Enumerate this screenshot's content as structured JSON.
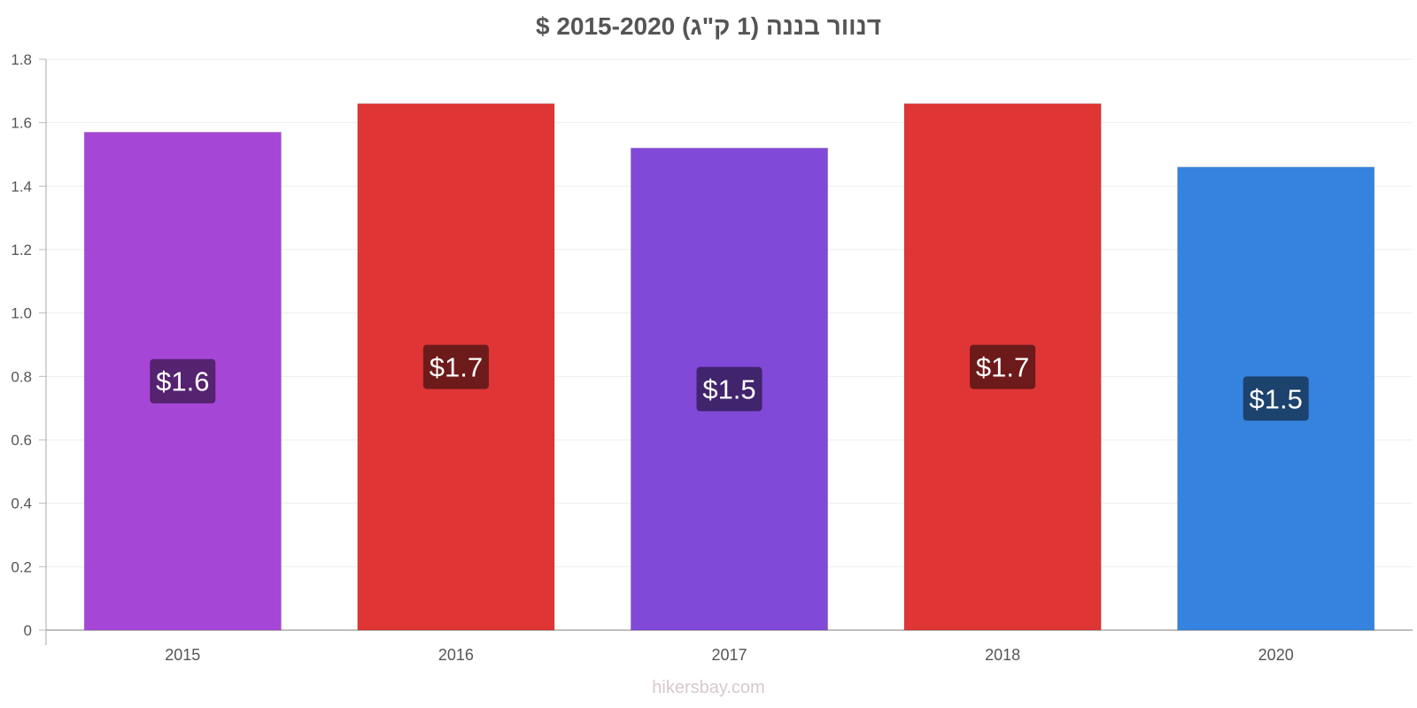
{
  "chart_data": {
    "type": "bar",
    "title": "דנוור בננה (1 ק\"ג) 2015-2020 $",
    "categories": [
      "2015",
      "2016",
      "2017",
      "2018",
      "2020"
    ],
    "values": [
      1.57,
      1.66,
      1.52,
      1.66,
      1.46
    ],
    "data_labels": [
      "$1.6",
      "$1.7",
      "$1.5",
      "$1.7",
      "$1.5"
    ],
    "bar_colors": [
      "#a646d7",
      "#e03535",
      "#8049d8",
      "#e03535",
      "#3583de"
    ],
    "label_bg_colors": [
      "#55236f",
      "#6d1a1a",
      "#40246c",
      "#6d1a1a",
      "#1c426e"
    ],
    "ylim": [
      0,
      1.8
    ],
    "yticks": [
      "0",
      "0.2",
      "0.4",
      "0.6",
      "0.8",
      "1.0",
      "1.2",
      "1.4",
      "1.6",
      "1.8"
    ],
    "xlabel": "",
    "ylabel": "",
    "grid": true,
    "legend": "none"
  },
  "watermark": "hikersbay.com"
}
